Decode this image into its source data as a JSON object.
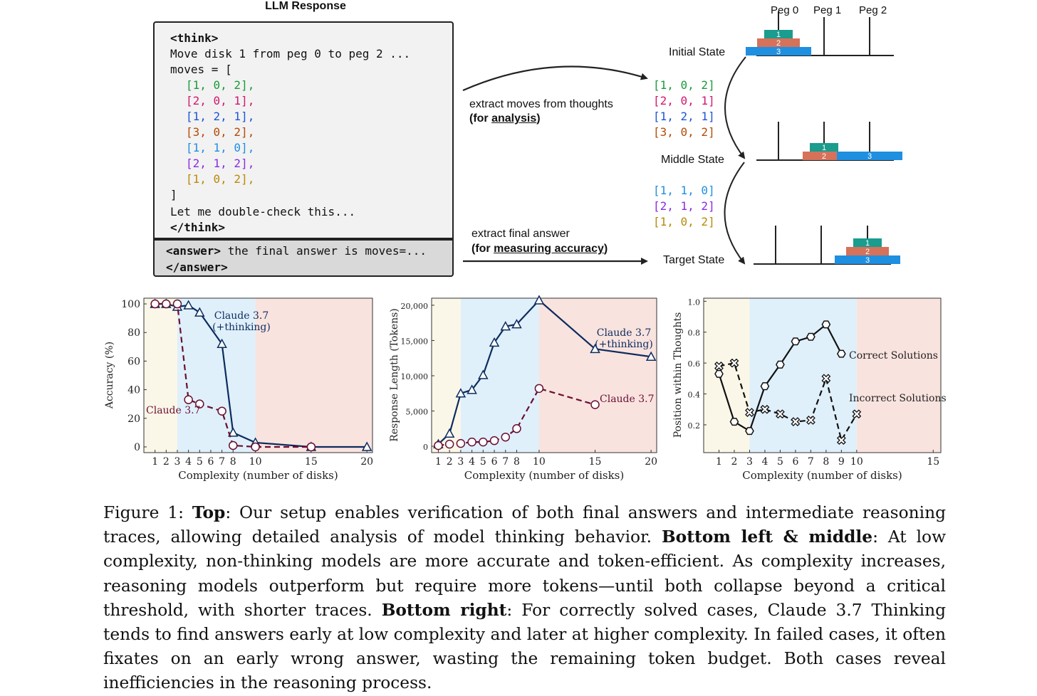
{
  "top": {
    "llm_title": "LLM Response",
    "think_open": "<think>",
    "move_text": "Move disk 1 from peg 0 to peg 2 ...",
    "moves_open": "moves = [",
    "moves": [
      {
        "text": "[1, 0, 2],",
        "color": "#1a9a3c"
      },
      {
        "text": "[2, 0, 1],",
        "color": "#d0186f"
      },
      {
        "text": "[1, 2, 1],",
        "color": "#1c55d4"
      },
      {
        "text": "[3, 0, 2],",
        "color": "#b44b08"
      },
      {
        "text": "[1, 1, 0],",
        "color": "#1f8fe0"
      },
      {
        "text": "[2, 1, 2],",
        "color": "#8a2be2"
      },
      {
        "text": "[1, 0, 2],",
        "color": "#b88a0a"
      }
    ],
    "moves_close": "]",
    "double_check": "Let me double-check this...",
    "think_close": "</think>",
    "answer_tag_open": "<answer>",
    "answer_text": " the final answer is moves=...",
    "answer_tag_close": "</answer>",
    "extract_moves_label": "extract moves  from thoughts",
    "for_analysis_prefix": "(for ",
    "for_analysis_word": "analysis",
    "for_analysis_suffix": ")",
    "extract_final_label": "extract final answer",
    "for_accuracy_prefix": "(for ",
    "for_accuracy_word": "measuring accuracy",
    "for_accuracy_suffix": ")",
    "extracted_first": [
      {
        "text": "[1, 0, 2]",
        "color": "#1a9a3c"
      },
      {
        "text": "[2, 0, 1]",
        "color": "#d0186f"
      },
      {
        "text": "[1, 2, 1]",
        "color": "#1c55d4"
      },
      {
        "text": "[3, 0, 2]",
        "color": "#b44b08"
      }
    ],
    "extracted_second": [
      {
        "text": "[1, 1, 0]",
        "color": "#1f8fe0"
      },
      {
        "text": "[2, 1, 2]",
        "color": "#8a2be2"
      },
      {
        "text": "[1, 0, 2]",
        "color": "#b88a0a"
      }
    ],
    "states": {
      "initial": "Initial State",
      "middle": "Middle State",
      "target": "Target State"
    },
    "pegs": [
      "Peg 0",
      "Peg 1",
      "Peg 2"
    ],
    "disk_labels": [
      "1",
      "2",
      "3"
    ],
    "disk_colors": {
      "1": "#1a9c8e",
      "2": "#d6715a",
      "3": "#1f8fe0"
    }
  },
  "chart_data": [
    {
      "type": "line",
      "xlabel": "Complexity (number of disks)",
      "ylabel": "Accuracy (%)",
      "xlim": [
        0,
        20.5
      ],
      "ylim": [
        -4,
        104
      ],
      "x_ticks": [
        1,
        2,
        3,
        4,
        5,
        6,
        7,
        8,
        10,
        15,
        20
      ],
      "y_ticks": [
        0,
        20,
        40,
        60,
        80,
        100
      ],
      "y_tick_labels": [
        "0",
        "20",
        "40",
        "60",
        "80",
        "100"
      ],
      "regions": [
        {
          "from": 0,
          "to": 3,
          "color": "#fbf7e8"
        },
        {
          "from": 3,
          "to": 10,
          "color": "#dff0fb"
        },
        {
          "from": 10,
          "to": 20.5,
          "color": "#f9e3df"
        }
      ],
      "series": [
        {
          "name": "Claude 3.7 (+thinking)",
          "label_lines": [
            "Claude 3.7",
            "(+thinking)"
          ],
          "color": "#0d2c5e",
          "marker": "triangle",
          "dash": false,
          "x": [
            1,
            2,
            3,
            4,
            5,
            7,
            8,
            10,
            15,
            20
          ],
          "y": [
            100,
            100,
            98,
            99,
            94,
            72,
            10,
            3,
            0,
            0
          ]
        },
        {
          "name": "Claude 3.7",
          "label_lines": [
            "Claude 3.7"
          ],
          "color": "#6a0f33",
          "marker": "circle",
          "dash": true,
          "x": [
            1,
            2,
            3,
            4,
            5,
            7,
            8,
            10,
            15
          ],
          "y": [
            100,
            100,
            100,
            33,
            30,
            25,
            1,
            0,
            0
          ]
        }
      ]
    },
    {
      "type": "line",
      "xlabel": "Complexity (number of disks)",
      "ylabel": "Response Length (Tokens)",
      "xlim": [
        0.4,
        20.5
      ],
      "ylim": [
        -900,
        21000
      ],
      "x_ticks": [
        1,
        2,
        3,
        4,
        5,
        6,
        7,
        8,
        10,
        15,
        20
      ],
      "y_ticks": [
        0,
        5000,
        10000,
        15000,
        20000
      ],
      "y_tick_labels": [
        "0",
        "5,000",
        "10,000",
        "15,000",
        "20,000"
      ],
      "regions": [
        {
          "from": 0.4,
          "to": 3,
          "color": "#fbf7e8"
        },
        {
          "from": 3,
          "to": 10,
          "color": "#dff0fb"
        },
        {
          "from": 10,
          "to": 20.5,
          "color": "#f9e3df"
        }
      ],
      "series": [
        {
          "name": "Claude 3.7 (+thinking)",
          "label_lines": [
            "Claude 3.7",
            "(+thinking)"
          ],
          "color": "#0d2c5e",
          "marker": "triangle",
          "dash": false,
          "x": [
            1,
            2,
            3,
            4,
            5,
            6,
            7,
            8,
            10,
            15,
            20
          ],
          "y": [
            300,
            1800,
            7500,
            8000,
            10100,
            14700,
            17000,
            17300,
            20700,
            13800,
            12700
          ]
        },
        {
          "name": "Claude 3.7",
          "label_lines": [
            "Claude 3.7"
          ],
          "color": "#6a0f33",
          "marker": "circle",
          "dash": true,
          "x": [
            1,
            2,
            3,
            4,
            5,
            6,
            7,
            8,
            10,
            15
          ],
          "y": [
            100,
            300,
            400,
            600,
            600,
            800,
            1300,
            2500,
            8200,
            5900
          ]
        }
      ]
    },
    {
      "type": "line",
      "xlabel": "Complexity (number of disks)",
      "ylabel": "Position within Thoughts",
      "xlim": [
        0,
        15.5
      ],
      "ylim": [
        0.02,
        1.02
      ],
      "x_ticks": [
        1,
        2,
        3,
        4,
        5,
        6,
        7,
        8,
        9,
        10,
        15
      ],
      "y_ticks": [
        0.2,
        0.4,
        0.6,
        0.8,
        1.0
      ],
      "y_tick_labels": [
        "0.2",
        "0.4",
        "0.6",
        "0.8",
        "1.0"
      ],
      "regions": [
        {
          "from": 0,
          "to": 3,
          "color": "#fbf7e8"
        },
        {
          "from": 3,
          "to": 10,
          "color": "#dff0fb"
        },
        {
          "from": 10,
          "to": 15.5,
          "color": "#f9e3df"
        }
      ],
      "series": [
        {
          "name": "Correct Solutions",
          "label_lines": [
            "Correct Solutions"
          ],
          "color": "#111111",
          "marker": "hexagon",
          "dash": false,
          "x": [
            1,
            2,
            3,
            4,
            5,
            6,
            7,
            8,
            9
          ],
          "y": [
            0.53,
            0.22,
            0.16,
            0.45,
            0.59,
            0.74,
            0.77,
            0.85,
            0.66
          ]
        },
        {
          "name": "Incorrect Solutions",
          "label_lines": [
            "Incorrect Solutions"
          ],
          "color": "#111111",
          "marker": "cross",
          "dash": true,
          "x": [
            1,
            2,
            3,
            4,
            5,
            6,
            7,
            8,
            9,
            10
          ],
          "y": [
            0.58,
            0.6,
            0.28,
            0.3,
            0.27,
            0.22,
            0.23,
            0.5,
            0.1,
            0.27
          ]
        }
      ]
    }
  ],
  "caption": {
    "fig_label": "Figure 1:",
    "top_bold": "Top",
    "top_text": ": Our setup enables verification of both final answers and intermediate reasoning traces, allowing detailed analysis of model thinking behavior.",
    "mid_bold": "Bottom left & middle",
    "mid_text": ": At low complexity, non-thinking models are more accurate and token-efficient. As complexity increases, reasoning models outperform but require more tokens—until both collapse beyond a critical threshold, with shorter traces.",
    "right_bold": "Bottom right",
    "right_text": ": For correctly solved cases, Claude 3.7 Thinking tends to find answers early at low complexity and later at higher complexity. In failed cases, it often fixates on an early wrong answer, wasting the remaining token budget. Both cases reveal inefficiencies in the reasoning process."
  }
}
